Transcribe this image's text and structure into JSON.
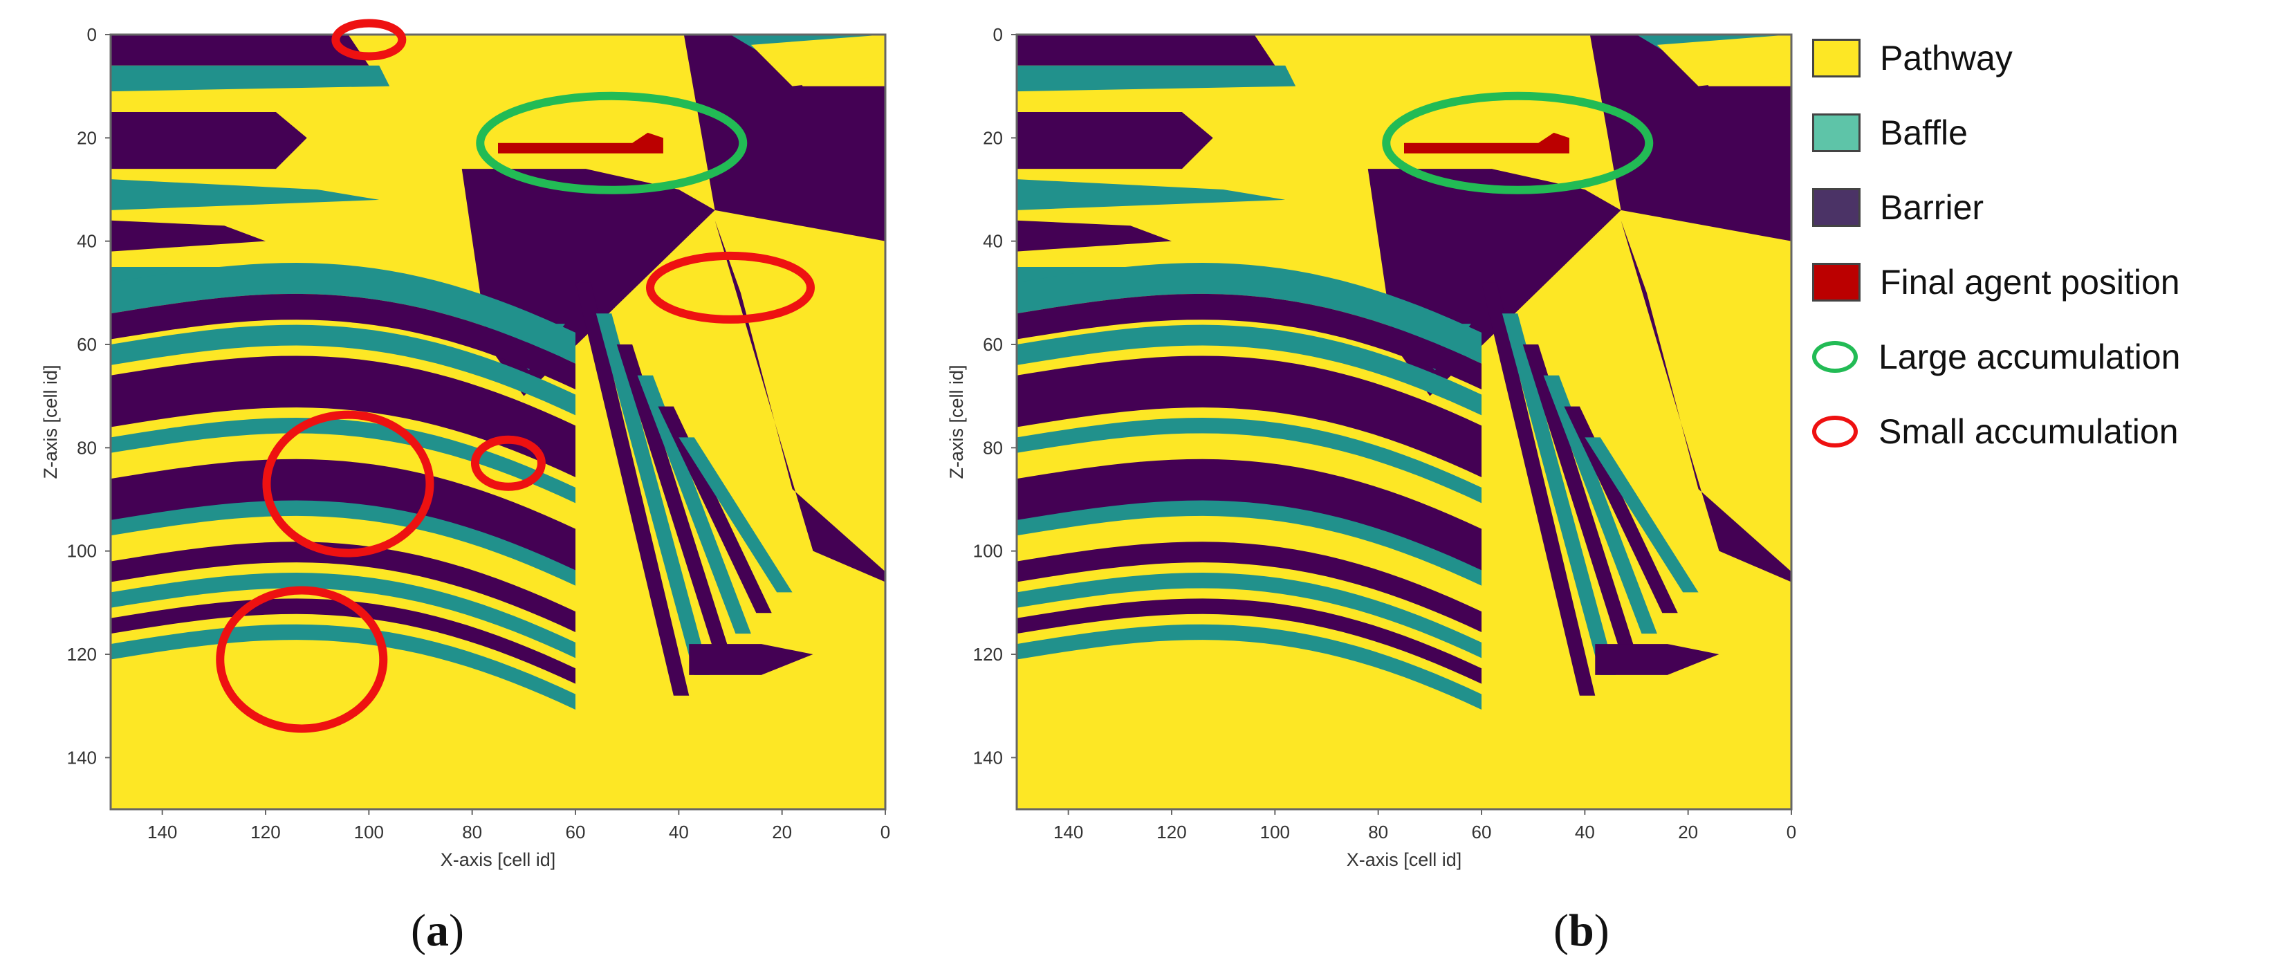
{
  "colors": {
    "pathway": "#fde725",
    "baffle": "#21918c",
    "barrier": "#440154",
    "final_agent_position": "#bb0000",
    "large_accumulation": "#22bb55",
    "small_accumulation": "#ee1111"
  },
  "legend": {
    "items": [
      {
        "label": "Pathway",
        "kind": "swatch",
        "color": "#fde725"
      },
      {
        "label": "Baffle",
        "kind": "swatch",
        "color": "#5ec4a8"
      },
      {
        "label": "Barrier",
        "kind": "swatch",
        "color": "#4b3366"
      },
      {
        "label": "Final agent position",
        "kind": "swatch",
        "color": "#bb0000"
      },
      {
        "label": "Large accumulation",
        "kind": "ring",
        "color": "#22bb55"
      },
      {
        "label": "Small accumulation",
        "kind": "ring",
        "color": "#ee1111"
      }
    ]
  },
  "chart_data": [
    {
      "type": "heatmap",
      "panel_label": "a",
      "xlabel": "X-axis [cell id]",
      "ylabel": "Z-axis [cell id]",
      "xlim": [
        150,
        0
      ],
      "ylim": [
        0,
        150
      ],
      "x_ticks": [
        140,
        120,
        100,
        80,
        60,
        40,
        20,
        0
      ],
      "y_ticks": [
        0,
        20,
        40,
        60,
        80,
        100,
        120,
        140
      ],
      "grid": false,
      "legend_position": "right",
      "classes": [
        "Pathway",
        "Baffle",
        "Barrier",
        "Final agent position"
      ],
      "final_agent_region": {
        "x": [
          43,
          75
        ],
        "z": [
          19,
          23
        ]
      },
      "annotations": [
        {
          "kind": "Large accumulation",
          "x": 53,
          "z": 21
        },
        {
          "kind": "Small accumulation",
          "x": 100,
          "z": 1
        },
        {
          "kind": "Small accumulation",
          "x": 30,
          "z": 49
        },
        {
          "kind": "Small accumulation",
          "x": 73,
          "z": 83
        },
        {
          "kind": "Small accumulation",
          "x": 104,
          "z": 87
        },
        {
          "kind": "Small accumulation",
          "x": 113,
          "z": 121
        }
      ]
    },
    {
      "type": "heatmap",
      "panel_label": "b",
      "xlabel": "X-axis [cell id]",
      "ylabel": "Z-axis [cell id]",
      "xlim": [
        150,
        0
      ],
      "ylim": [
        0,
        150
      ],
      "x_ticks": [
        140,
        120,
        100,
        80,
        60,
        40,
        20,
        0
      ],
      "y_ticks": [
        0,
        20,
        40,
        60,
        80,
        100,
        120,
        140
      ],
      "grid": false,
      "legend_position": "right",
      "classes": [
        "Pathway",
        "Baffle",
        "Barrier",
        "Final agent position"
      ],
      "final_agent_region": {
        "x": [
          43,
          75
        ],
        "z": [
          19,
          23
        ]
      },
      "annotations": [
        {
          "kind": "Large accumulation",
          "x": 53,
          "z": 21
        }
      ]
    }
  ]
}
